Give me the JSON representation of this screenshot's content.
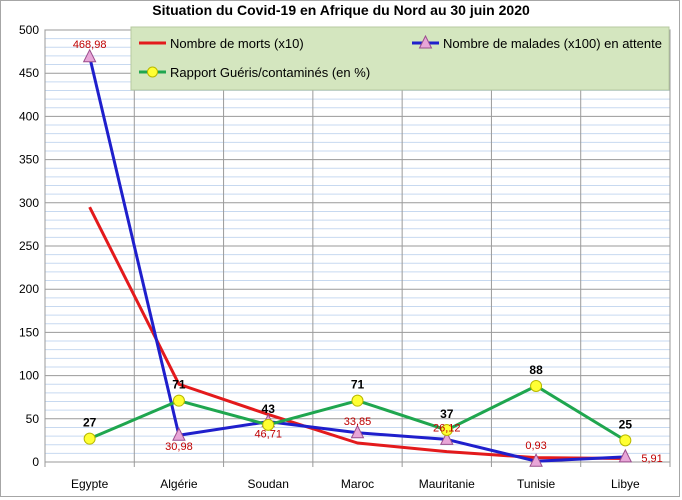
{
  "chart_data": {
    "type": "line",
    "title": "Situation du Covid-19 en Afrique du Nord au 30 juin 2020",
    "categories": [
      "Egypte",
      "Algérie",
      "Soudan",
      "Maroc",
      "Mauritanie",
      "Tunisie",
      "Libye"
    ],
    "ylim": [
      0,
      500
    ],
    "yticks": [
      0,
      50,
      100,
      150,
      200,
      250,
      300,
      350,
      400,
      450,
      500
    ],
    "grid": true,
    "legend_position": "top",
    "series": [
      {
        "name": "Nombre de morts (x10)",
        "color": "#e31a1c",
        "marker": "none",
        "values": [
          295,
          90,
          55,
          22,
          12,
          5,
          4
        ],
        "labels": [
          "",
          "",
          "",
          "",
          "",
          "",
          ""
        ]
      },
      {
        "name": "Nombre de malades (x100) en attente",
        "color": "#1f1fcc",
        "marker": "triangle",
        "values": [
          468.98,
          30.98,
          46.71,
          33.85,
          26.12,
          0.93,
          5.91
        ],
        "labels": [
          "468,98",
          "30,98",
          "46,71",
          "33,85",
          "26,12",
          "0,93",
          "5,91"
        ]
      },
      {
        "name": "Rapport Guéris/contaminés (en %)",
        "color": "#1fa64f",
        "marker": "circle",
        "values": [
          27,
          71,
          43,
          71,
          37,
          88,
          25
        ],
        "labels": [
          "27",
          "71",
          "43",
          "71",
          "37",
          "88",
          "25"
        ]
      }
    ],
    "colors": {
      "plot_background": "#ffffff",
      "gridline_minor": "#c7d9f0",
      "gridline_major": "#9a9a9a",
      "legend_background": "#d4e6bf",
      "triangle_marker_fill": "#e8a6d8",
      "circle_marker_fill": "#ffff33",
      "label_red": "#c00000"
    }
  }
}
